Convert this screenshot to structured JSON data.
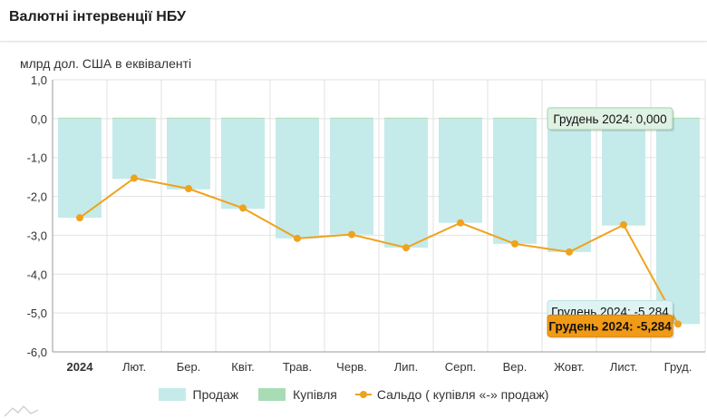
{
  "header": {
    "title": "Валютні інтервенції НБУ"
  },
  "colors": {
    "sell": "#c5eaea",
    "buy": "#a8dcb4",
    "balance": "#f0a21c",
    "grid": "#e2e2e2",
    "axis": "#999999"
  },
  "chart_data": {
    "type": "bar",
    "ylabel": "млрд дол. США в еквіваленті",
    "ylim": [
      -6,
      1
    ],
    "yticks": [
      "1,0",
      "0,0",
      "-1,0",
      "-2,0",
      "-3,0",
      "-4,0",
      "-5,0",
      "-6,0"
    ],
    "categories": [
      "2024",
      "Лют.",
      "Бер.",
      "Квіт.",
      "Трав.",
      "Черв.",
      "Лип.",
      "Серп.",
      "Вер.",
      "Жовт.",
      "Лист.",
      "Груд."
    ],
    "series": [
      {
        "name": "Продаж",
        "kind": "bar",
        "values": [
          -2.55,
          -1.55,
          -1.82,
          -2.32,
          -3.08,
          -2.98,
          -3.32,
          -2.68,
          -3.22,
          -3.43,
          -2.75,
          -5.284
        ]
      },
      {
        "name": "Купівля",
        "kind": "bar",
        "values": [
          0,
          0.02,
          0.02,
          0.02,
          0,
          0,
          0,
          0,
          0,
          0,
          0,
          0.0
        ]
      },
      {
        "name": "Сальдо ( купівля «-» продаж)",
        "kind": "line",
        "values": [
          -2.55,
          -1.53,
          -1.8,
          -2.3,
          -3.08,
          -2.98,
          -3.32,
          -2.68,
          -3.22,
          -3.43,
          -2.73,
          -5.284
        ]
      }
    ],
    "tooltips": [
      {
        "text": "Грудень 2024: 0,000",
        "series": "Купівля"
      },
      {
        "text": "Грудень 2024: -5,284",
        "series": "Продаж"
      },
      {
        "text": "Грудень 2024: -5,284",
        "series": "Сальдо ( купівля «-» продаж)"
      }
    ]
  }
}
